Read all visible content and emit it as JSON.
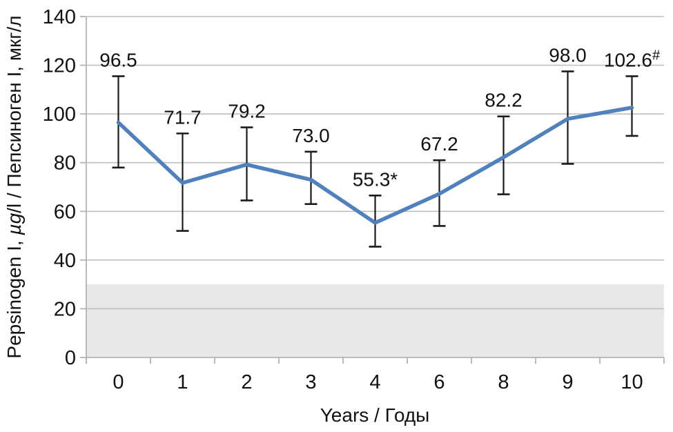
{
  "chart_data": {
    "type": "line",
    "title": "",
    "xlabel": "Years / Годы",
    "ylabel_pre": "Pepsinogen I, ",
    "ylabel_italic": "µg",
    "ylabel_post": "/l / Пепсиноген I, мкг/л",
    "categories": [
      "0",
      "1",
      "2",
      "3",
      "4",
      "6",
      "8",
      "9",
      "10"
    ],
    "series": [
      {
        "name": "Pepsinogen I",
        "color": "#4f81bd",
        "values": [
          96.5,
          71.7,
          79.2,
          73.0,
          55.3,
          67.2,
          82.2,
          98.0,
          102.6
        ],
        "point_labels": [
          "96.5",
          "71.7",
          "79.2",
          "73.0",
          "55.3*",
          "67.2",
          "82.2",
          "98.0",
          "102.6"
        ],
        "point_label_superscripts": [
          "",
          "",
          "",
          "",
          "",
          "",
          "",
          "",
          "#"
        ],
        "error_low": [
          78.0,
          52.0,
          64.5,
          63.0,
          45.5,
          54.0,
          67.0,
          79.5,
          91.0
        ],
        "error_high": [
          115.5,
          92.0,
          94.5,
          84.5,
          66.5,
          81.0,
          99.0,
          117.5,
          115.5
        ]
      }
    ],
    "ylim": [
      0,
      140
    ],
    "ytick_values": [
      0,
      20,
      40,
      60,
      80,
      100,
      120,
      140
    ],
    "ytick_labels": [
      "0",
      "20",
      "40",
      "60",
      "80",
      "100",
      "120",
      "140"
    ],
    "reference_band": {
      "from": 0,
      "to": 30,
      "color": "#e8e8e8"
    },
    "grid": true,
    "legend": "none",
    "gridline_color": "#bfbfbf",
    "axis_color": "#b3b3b3",
    "errorbar_color": "#1a1a1a",
    "text_color": "#111111"
  }
}
